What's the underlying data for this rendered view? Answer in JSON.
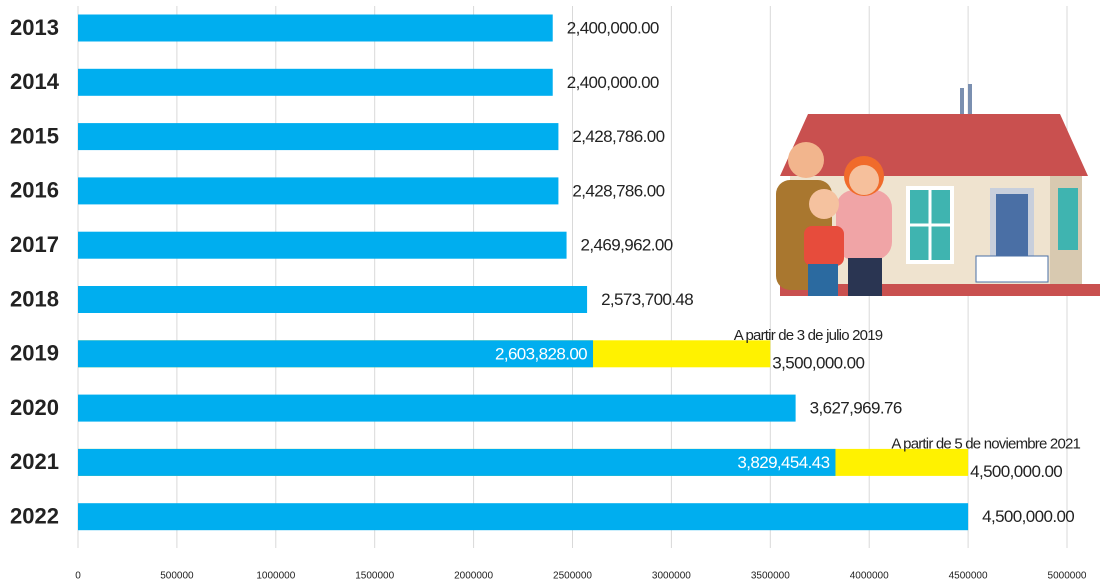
{
  "chart_data": {
    "type": "bar",
    "orientation": "horizontal",
    "categories": [
      "2013",
      "2014",
      "2015",
      "2016",
      "2017",
      "2018",
      "2019",
      "2020",
      "2021",
      "2022"
    ],
    "series": [
      {
        "color": "#00aeef",
        "values": [
          2400000,
          2400000,
          2428786,
          2428786,
          2469962,
          2573700.48,
          2603828,
          3627969.76,
          3829454.43,
          4500000
        ],
        "value_labels": [
          "2,400,000.00",
          "2,400,000.00",
          "2,428,786.00",
          "2,428,786.00",
          "2,469,962.00",
          "2,573,700.48",
          "2,603,828.00",
          "3,627,969.76",
          "3,829,454.43",
          "4,500,000.00"
        ]
      },
      {
        "color": "#fff200",
        "values": [
          null,
          null,
          null,
          null,
          null,
          null,
          3500000,
          null,
          4500000,
          null
        ],
        "value_labels": [
          null,
          null,
          null,
          null,
          null,
          null,
          "3,500,000.00",
          null,
          "4,500,000.00",
          null
        ],
        "annotations": [
          null,
          null,
          null,
          null,
          null,
          null,
          "A partir de 3 de julio 2019",
          null,
          "A partir de 5 de noviembre 2021",
          null
        ]
      }
    ],
    "xlim": [
      0,
      5000000
    ],
    "xticks": [
      0,
      500000,
      1000000,
      1500000,
      2000000,
      2500000,
      3000000,
      3500000,
      4000000,
      4500000,
      5000000
    ],
    "grid": true
  }
}
